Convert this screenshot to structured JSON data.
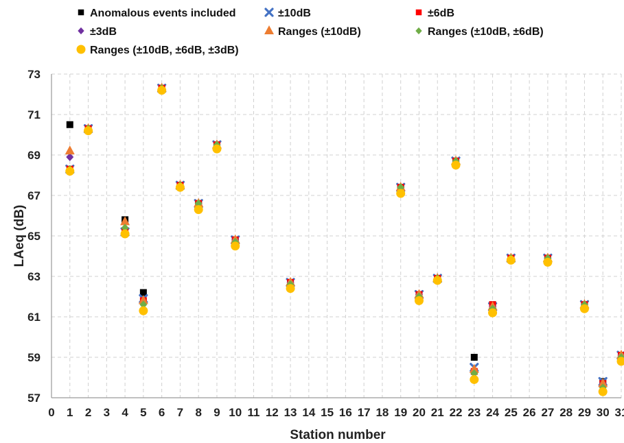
{
  "chart_data": {
    "type": "scatter",
    "xlabel": "Station number",
    "ylabel": "LAeq (dB)",
    "xlim": [
      0,
      31
    ],
    "ylim": [
      57,
      73
    ],
    "x_ticks": [
      0,
      1,
      2,
      3,
      4,
      5,
      6,
      7,
      8,
      9,
      10,
      11,
      12,
      13,
      14,
      15,
      16,
      17,
      18,
      19,
      20,
      21,
      22,
      23,
      24,
      25,
      26,
      27,
      28,
      29,
      30,
      31
    ],
    "x_tick_labels": [
      "0",
      "1",
      "2",
      "3",
      "4",
      "5",
      "6",
      "7",
      "8",
      "9",
      "10",
      "11",
      "12",
      "13",
      "14",
      "15",
      "16",
      "17",
      "18",
      "19",
      "20",
      "21",
      "22",
      "23",
      "24",
      "25",
      "26",
      "27",
      "28",
      "29",
      "30",
      "31"
    ],
    "y_ticks": [
      57,
      59,
      61,
      63,
      65,
      67,
      69,
      71,
      73
    ],
    "y_tick_labels": [
      "57",
      "59",
      "61",
      "63",
      "65",
      "67",
      "69",
      "71",
      "73"
    ],
    "grid": true,
    "legend_position": "top",
    "series": [
      {
        "name": "Anomalous events included",
        "marker": "square",
        "color": "#000000",
        "points": [
          [
            1,
            70.5
          ],
          [
            2,
            70.3
          ],
          [
            4,
            65.8
          ],
          [
            5,
            62.2
          ],
          [
            6,
            72.3
          ],
          [
            7,
            67.5
          ],
          [
            8,
            66.6
          ],
          [
            9,
            69.5
          ],
          [
            10,
            64.8
          ],
          [
            13,
            62.7
          ],
          [
            19,
            67.4
          ],
          [
            20,
            62.1
          ],
          [
            21,
            62.9
          ],
          [
            22,
            68.7
          ],
          [
            23,
            59.0
          ],
          [
            24,
            61.6
          ],
          [
            25,
            63.9
          ],
          [
            27,
            63.9
          ],
          [
            29,
            61.6
          ],
          [
            30,
            57.8
          ],
          [
            31,
            59.1
          ]
        ]
      },
      {
        "name": "±10dB",
        "marker": "x",
        "color": "#4472C4",
        "points": [
          [
            1,
            68.3
          ],
          [
            2,
            70.3
          ],
          [
            4,
            65.2
          ],
          [
            5,
            61.9
          ],
          [
            6,
            72.3
          ],
          [
            7,
            67.5
          ],
          [
            8,
            66.6
          ],
          [
            9,
            69.5
          ],
          [
            10,
            64.8
          ],
          [
            13,
            62.7
          ],
          [
            19,
            67.4
          ],
          [
            20,
            62.1
          ],
          [
            21,
            62.9
          ],
          [
            22,
            68.7
          ],
          [
            23,
            58.5
          ],
          [
            24,
            61.5
          ],
          [
            25,
            63.9
          ],
          [
            27,
            63.9
          ],
          [
            29,
            61.6
          ],
          [
            30,
            57.8
          ],
          [
            31,
            59.1
          ]
        ]
      },
      {
        "name": "±6dB",
        "marker": "square",
        "color": "#FF0000",
        "points": [
          [
            1,
            68.3
          ],
          [
            2,
            70.3
          ],
          [
            4,
            65.2
          ],
          [
            5,
            61.8
          ],
          [
            6,
            72.3
          ],
          [
            7,
            67.5
          ],
          [
            8,
            66.6
          ],
          [
            9,
            69.5
          ],
          [
            10,
            64.8
          ],
          [
            13,
            62.7
          ],
          [
            19,
            67.4
          ],
          [
            20,
            62.1
          ],
          [
            21,
            62.9
          ],
          [
            22,
            68.7
          ],
          [
            23,
            58.3
          ],
          [
            24,
            61.6
          ],
          [
            25,
            63.9
          ],
          [
            27,
            63.9
          ],
          [
            29,
            61.6
          ],
          [
            30,
            57.7
          ],
          [
            31,
            59.1
          ]
        ]
      },
      {
        "name": "±3dB",
        "marker": "diamond",
        "color": "#7030A0",
        "points": [
          [
            1,
            68.9
          ],
          [
            2,
            70.3
          ],
          [
            4,
            65.2
          ],
          [
            5,
            61.7
          ],
          [
            6,
            72.3
          ],
          [
            7,
            67.5
          ],
          [
            8,
            66.6
          ],
          [
            9,
            69.5
          ],
          [
            10,
            64.8
          ],
          [
            13,
            62.7
          ],
          [
            19,
            67.4
          ],
          [
            20,
            62.1
          ],
          [
            21,
            62.9
          ],
          [
            22,
            68.7
          ],
          [
            23,
            58.3
          ],
          [
            24,
            61.5
          ],
          [
            25,
            63.9
          ],
          [
            27,
            63.9
          ],
          [
            29,
            61.6
          ],
          [
            30,
            57.7
          ],
          [
            31,
            59.1
          ]
        ]
      },
      {
        "name": "Ranges (±10dB)",
        "marker": "triangle",
        "color": "#ED7D31",
        "points": [
          [
            1,
            69.2
          ],
          [
            2,
            70.3
          ],
          [
            4,
            65.7
          ],
          [
            5,
            61.8
          ],
          [
            6,
            72.3
          ],
          [
            7,
            67.5
          ],
          [
            8,
            66.6
          ],
          [
            9,
            69.5
          ],
          [
            10,
            64.8
          ],
          [
            13,
            62.7
          ],
          [
            19,
            67.4
          ],
          [
            20,
            62.1
          ],
          [
            21,
            62.9
          ],
          [
            22,
            68.7
          ],
          [
            23,
            58.4
          ],
          [
            24,
            61.5
          ],
          [
            25,
            63.9
          ],
          [
            27,
            63.9
          ],
          [
            29,
            61.6
          ],
          [
            30,
            57.7
          ],
          [
            31,
            59.1
          ]
        ]
      },
      {
        "name": "Ranges (±10dB, ±6dB)",
        "marker": "diamond",
        "color": "#70AD47",
        "points": [
          [
            1,
            68.3
          ],
          [
            2,
            70.3
          ],
          [
            4,
            65.4
          ],
          [
            5,
            61.6
          ],
          [
            6,
            72.3
          ],
          [
            7,
            67.5
          ],
          [
            8,
            66.6
          ],
          [
            9,
            69.5
          ],
          [
            10,
            64.7
          ],
          [
            13,
            62.6
          ],
          [
            19,
            67.4
          ],
          [
            20,
            62.0
          ],
          [
            21,
            62.9
          ],
          [
            22,
            68.7
          ],
          [
            23,
            58.2
          ],
          [
            24,
            61.4
          ],
          [
            25,
            63.9
          ],
          [
            27,
            63.9
          ],
          [
            29,
            61.6
          ],
          [
            30,
            57.5
          ],
          [
            31,
            59.0
          ]
        ]
      },
      {
        "name": "Ranges (±10dB, ±6dB, ±3dB)",
        "marker": "circle",
        "color": "#FFC000",
        "points": [
          [
            1,
            68.2
          ],
          [
            2,
            70.2
          ],
          [
            4,
            65.1
          ],
          [
            5,
            61.3
          ],
          [
            6,
            72.2
          ],
          [
            7,
            67.4
          ],
          [
            8,
            66.3
          ],
          [
            9,
            69.3
          ],
          [
            10,
            64.5
          ],
          [
            13,
            62.4
          ],
          [
            19,
            67.1
          ],
          [
            20,
            61.8
          ],
          [
            21,
            62.8
          ],
          [
            22,
            68.5
          ],
          [
            23,
            57.9
          ],
          [
            24,
            61.2
          ],
          [
            25,
            63.8
          ],
          [
            27,
            63.7
          ],
          [
            29,
            61.4
          ],
          [
            30,
            57.3
          ],
          [
            31,
            58.8
          ]
        ]
      }
    ]
  }
}
